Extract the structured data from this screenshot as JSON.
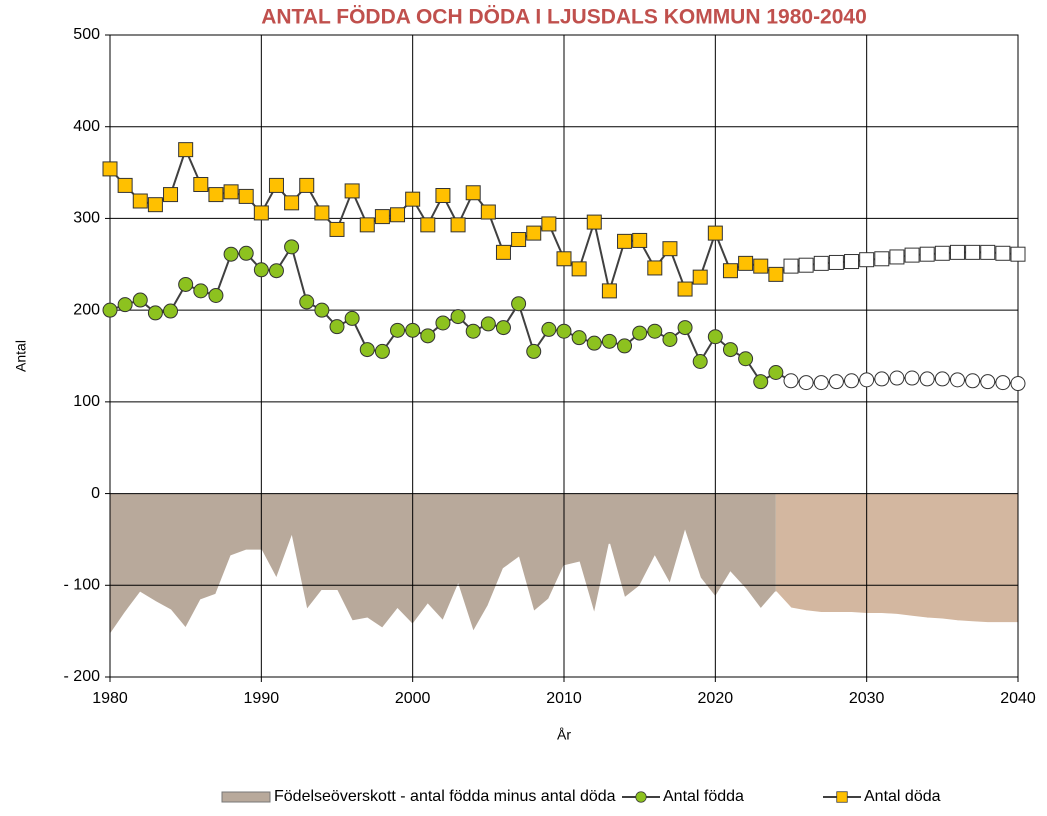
{
  "chart_data": {
    "type": "line",
    "title": "ANTAL FÖDDA OCH DÖDA I LJUSDALS KOMMUN 1980-2040",
    "x_label": "År",
    "y_label": "Antal",
    "x": [
      1980,
      1981,
      1982,
      1983,
      1984,
      1985,
      1986,
      1987,
      1988,
      1989,
      1990,
      1991,
      1992,
      1993,
      1994,
      1995,
      1996,
      1997,
      1998,
      1999,
      2000,
      2001,
      2002,
      2003,
      2004,
      2005,
      2006,
      2007,
      2008,
      2009,
      2010,
      2011,
      2012,
      2013,
      2014,
      2015,
      2016,
      2017,
      2018,
      2019,
      2020,
      2021,
      2022,
      2023,
      2024,
      2025,
      2026,
      2027,
      2028,
      2029,
      2030,
      2031,
      2032,
      2033,
      2034,
      2035,
      2036,
      2037,
      2038,
      2039,
      2040
    ],
    "projected_from": 2025,
    "series": [
      {
        "name": "Födelseöverskott - antal födda minus antal döda",
        "kind": "area",
        "color": "#b8a99b",
        "projected_color": "#d3b7a0",
        "values": [
          -154,
          -130,
          -108,
          -118,
          -127,
          -147,
          -116,
          -110,
          -68,
          -62,
          -62,
          -93,
          -48,
          -127,
          -106,
          -106,
          -139,
          -136,
          -147,
          -126,
          -143,
          -121,
          -139,
          -100,
          -151,
          -122,
          -82,
          -70,
          -129,
          -115,
          -79,
          -75,
          -132,
          -55,
          -114,
          -101,
          -69,
          -99,
          -42,
          -92,
          -113,
          -86,
          -104,
          -126,
          -107,
          -125,
          -128,
          -130,
          -130,
          -130,
          -131,
          -131,
          -132,
          -134,
          -136,
          -137,
          -139,
          -140,
          -141,
          -141,
          -141
        ]
      },
      {
        "name": "Antal födda",
        "kind": "line",
        "marker": "circle",
        "color": "#8dc21f",
        "values": [
          200,
          206,
          211,
          197,
          199,
          228,
          221,
          216,
          261,
          262,
          244,
          243,
          269,
          209,
          200,
          182,
          191,
          157,
          155,
          178,
          178,
          172,
          186,
          193,
          177,
          185,
          181,
          207,
          155,
          179,
          177,
          170,
          164,
          166,
          161,
          175,
          177,
          168,
          181,
          144,
          171,
          157,
          147,
          122,
          132,
          123,
          121,
          121,
          122,
          123,
          124,
          125,
          126,
          126,
          125,
          125,
          124,
          123,
          122,
          121,
          120
        ]
      },
      {
        "name": "Antal döda",
        "kind": "line",
        "marker": "square",
        "color": "#ffc000",
        "values": [
          354,
          336,
          319,
          315,
          326,
          375,
          337,
          326,
          329,
          324,
          306,
          336,
          317,
          336,
          306,
          288,
          330,
          293,
          302,
          304,
          321,
          293,
          325,
          293,
          328,
          307,
          263,
          277,
          284,
          294,
          256,
          245,
          296,
          221,
          275,
          276,
          246,
          267,
          223,
          236,
          284,
          243,
          251,
          248,
          239,
          248,
          249,
          251,
          252,
          253,
          255,
          256,
          258,
          260,
          261,
          262,
          263,
          263,
          263,
          262,
          261
        ]
      }
    ],
    "xlim": [
      1980,
      2040
    ],
    "xticks": [
      1980,
      1990,
      2000,
      2010,
      2020,
      2030,
      2040
    ],
    "ylim": [
      -200,
      500
    ],
    "yticks": [
      {
        "value": -200,
        "label": "- 200"
      },
      {
        "value": -100,
        "label": "- 100"
      },
      0,
      100,
      200,
      300,
      400,
      500
    ],
    "grid": true
  }
}
